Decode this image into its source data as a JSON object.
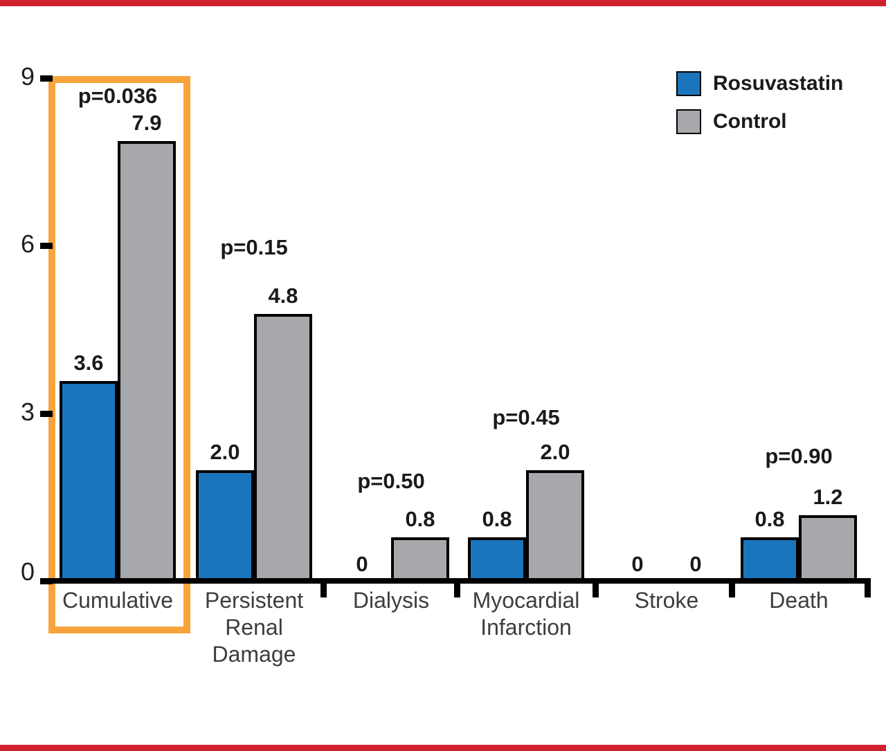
{
  "chart_data": {
    "type": "bar",
    "title": "",
    "xlabel": "",
    "ylabel": "",
    "categories": [
      {
        "lines": [
          "Cumulative"
        ]
      },
      {
        "lines": [
          "Persistent",
          "Renal",
          "Damage"
        ]
      },
      {
        "lines": [
          "Dialysis"
        ]
      },
      {
        "lines": [
          "Myocardial",
          "Infarction"
        ]
      },
      {
        "lines": [
          "Stroke"
        ]
      },
      {
        "lines": [
          "Death"
        ]
      }
    ],
    "series": [
      {
        "name": "Rosuvastatin",
        "color": "#1B75BC",
        "values": [
          3.6,
          2.0,
          0,
          0.8,
          0,
          0.8
        ],
        "labels": [
          "3.6",
          "2.0",
          "0",
          "0.8",
          "0",
          "0.8"
        ]
      },
      {
        "name": "Control",
        "color": "#A6A8AB",
        "values": [
          7.9,
          4.8,
          0.8,
          2.0,
          0,
          1.2
        ],
        "labels": [
          "7.9",
          "4.8",
          "0.8",
          "2.0",
          "0",
          "1.2"
        ]
      }
    ],
    "p_values": [
      "p=0.036",
      "p=0.15",
      "p=0.50",
      "p=0.45",
      null,
      "p=0.90"
    ],
    "y_axis": {
      "min": 0,
      "max": 9,
      "ticks": [
        0,
        3,
        6,
        9
      ],
      "tick_labels": [
        "0",
        "3",
        "6",
        "9"
      ]
    },
    "legend": {
      "position": "top-right",
      "entries": [
        {
          "label": "Rosuvastatin",
          "color": "#1B75BC"
        },
        {
          "label": "Control",
          "color": "#A6A8AB"
        }
      ]
    },
    "highlight_box": {
      "around_category": "Cumulative",
      "color": "#F8A43C"
    },
    "accent_bars": {
      "color": "#D0212E"
    },
    "grid": "off"
  }
}
